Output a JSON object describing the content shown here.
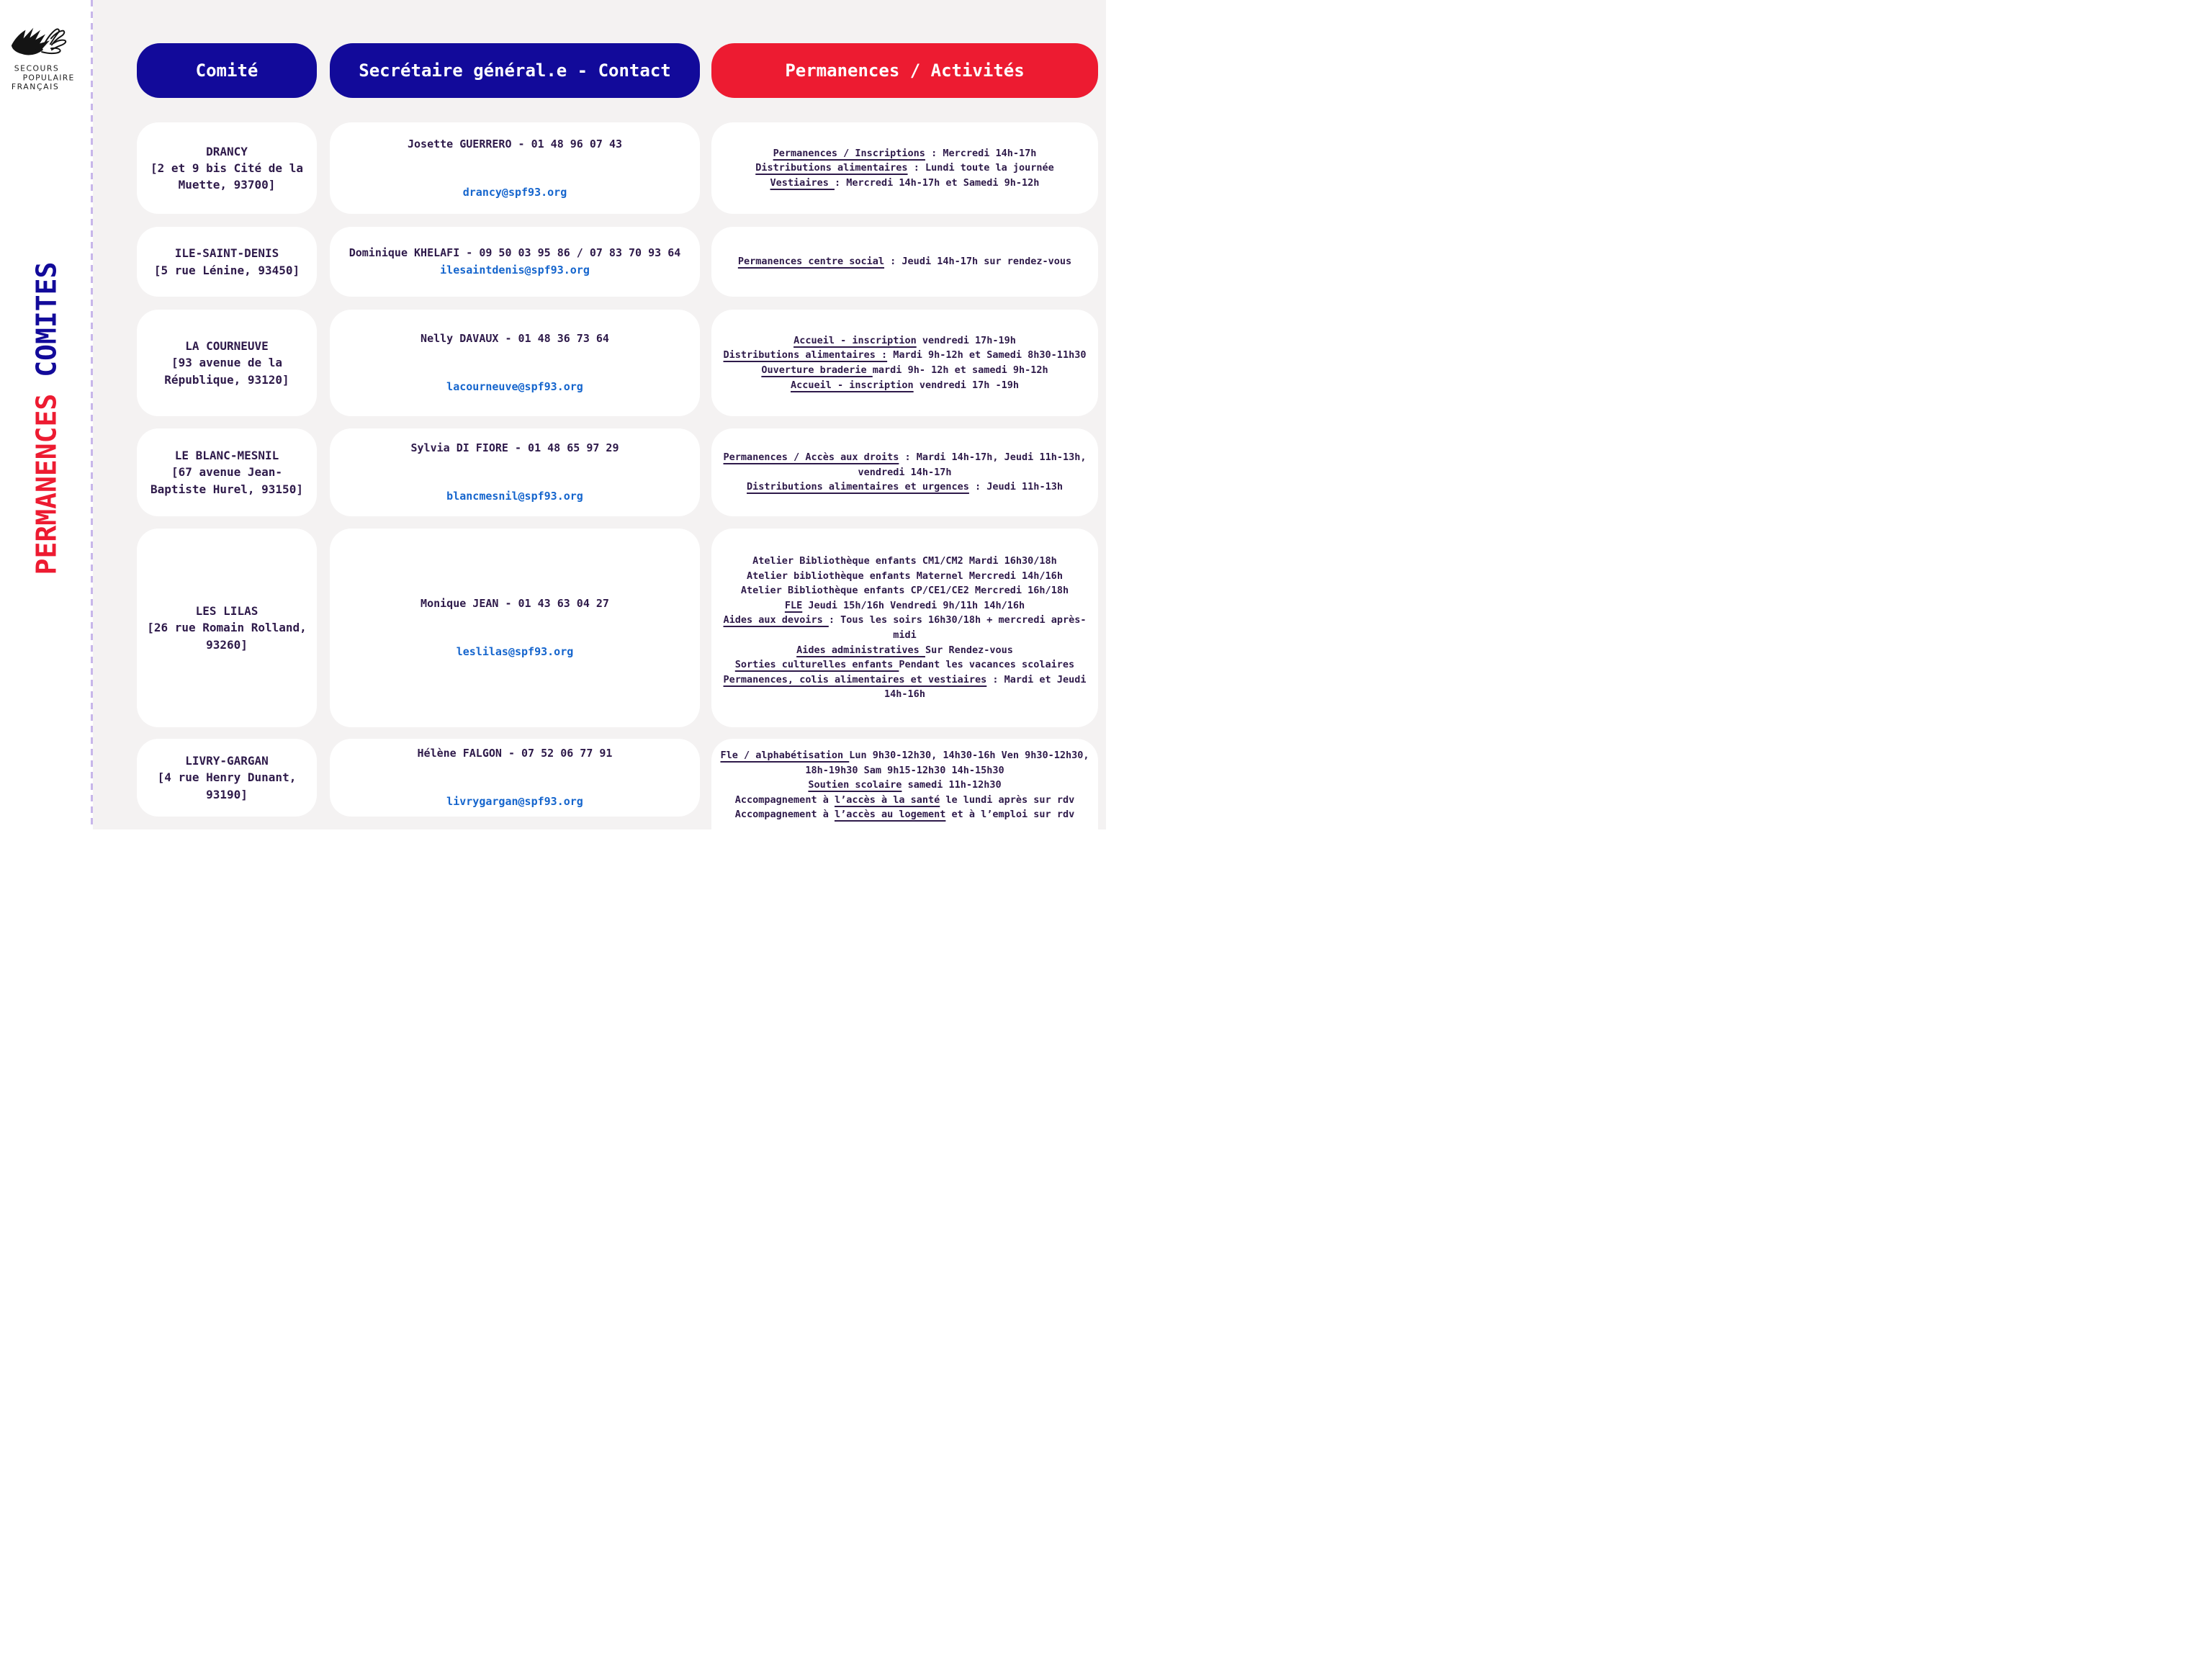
{
  "colors": {
    "header_blue": "#120a9a",
    "header_red": "#ed1b31",
    "body_text": "#2e1a4a",
    "email_blue": "#1565cd",
    "bg_gray": "#f4f2f2",
    "dash_lavender": "#c7b6ea"
  },
  "sidebar": {
    "logo_lines": [
      "SECOURS",
      "POPULAIRE",
      "FRANÇAIS"
    ],
    "vertical_title": {
      "red": "PERMANENCES",
      "blue": "COMITES"
    }
  },
  "headers": {
    "comite": "Comité",
    "contact": "Secrétaire général.e - Contact",
    "activites": "Permanences / Activités"
  },
  "rows": [
    {
      "comite": {
        "name": "DRANCY",
        "address": "[2 et 9 bis Cité de la Muette, 93700]"
      },
      "contact": {
        "name_phone": "Josette GUERRERO - 01 48 96 07 43",
        "email": "drancy@spf93.org"
      },
      "activites": [
        [
          {
            "text": "Permanences / Inscriptions",
            "u": true
          },
          {
            "text": " : Mercredi 14h-17h"
          }
        ],
        [
          {
            "text": "Distributions alimentaires",
            "u": true
          },
          {
            "text": " : Lundi toute la journée"
          }
        ],
        [
          {
            "text": "Vestiaires ",
            "u": true
          },
          {
            "text": ": Mercredi 14h-17h et Samedi 9h-12h"
          }
        ]
      ]
    },
    {
      "comite": {
        "name": "ILE-SAINT-DENIS",
        "address": "[5 rue Lénine, 93450]"
      },
      "contact": {
        "name_phone": "Dominique KHELAFI - 09 50 03 95 86 / 07 83 70 93 64",
        "email": "ilesaintdenis@spf93.org"
      },
      "activites": [
        [
          {
            "text": "Permanences centre social",
            "u": true
          },
          {
            "text": " : Jeudi 14h-17h sur rendez-vous"
          }
        ]
      ]
    },
    {
      "comite": {
        "name": "LA COURNEUVE",
        "address": "[93 avenue de la République, 93120]"
      },
      "contact": {
        "name_phone": "Nelly DAVAUX - 01 48 36 73 64",
        "email": "lacourneuve@spf93.org"
      },
      "activites": [
        [
          {
            "text": "Accueil - inscription",
            "u": true
          },
          {
            "text": " vendredi 17h-19h"
          }
        ],
        [
          {
            "text": "Distributions alimentaires :",
            "u": true
          },
          {
            "text": " Mardi 9h-12h et Samedi 8h30-11h30"
          }
        ],
        [
          {
            "text": "Ouverture braderie ",
            "u": true
          },
          {
            "text": "mardi 9h- 12h et samedi 9h-12h"
          }
        ],
        [
          {
            "text": "Accueil - inscription",
            "u": true
          },
          {
            "text": " vendredi 17h -19h"
          }
        ]
      ]
    },
    {
      "comite": {
        "name": "LE BLANC-MESNIL",
        "address": "[67 avenue Jean-Baptiste Hurel, 93150]"
      },
      "contact": {
        "name_phone": "Sylvia DI FIORE - 01 48 65 97 29",
        "email": "blancmesnil@spf93.org"
      },
      "activites": [
        [
          {
            "text": "Permanences / Accès aux droits",
            "u": true
          },
          {
            "text": " : Mardi 14h-17h, Jeudi 11h-13h, vendredi 14h-17h"
          }
        ],
        [
          {
            "text": "Distributions alimentaires et urgences",
            "u": true
          },
          {
            "text": " : Jeudi 11h-13h"
          }
        ]
      ]
    },
    {
      "comite": {
        "name": "LES LILAS",
        "address": "[26 rue Romain Rolland, 93260]"
      },
      "contact": {
        "name_phone": "Monique JEAN - 01 43 63 04 27",
        "email": "leslilas@spf93.org"
      },
      "activites": [
        [
          {
            "text": "Atelier Bibliothèque enfants CM1/CM2  Mardi 16h30/18h"
          }
        ],
        [
          {
            "text": "Atelier bibliothèque enfants Maternel Mercredi 14h/16h"
          }
        ],
        [
          {
            "text": "Atelier Bibliothèque enfants CP/CE1/CE2 Mercredi 16h/18h"
          }
        ],
        [
          {
            "text": "FLE",
            "u": true
          },
          {
            "text": " Jeudi 15h/16h Vendredi 9h/11h 14h/16h"
          }
        ],
        [
          {
            "text": "Aides aux devoirs ",
            "u": true
          },
          {
            "text": ": Tous les soirs 16h30/18h + mercredi après-midi"
          }
        ],
        [
          {
            "text": "Aides administratives ",
            "u": true
          },
          {
            "text": "   Sur Rendez-vous"
          }
        ],
        [
          {
            "text": "Sorties culturelles enfants ",
            "u": true
          },
          {
            "text": "  Pendant les vacances scolaires"
          }
        ],
        [
          {
            "text": "Permanences, colis alimentaires et vestiaires",
            "u": true
          },
          {
            "text": " : Mardi et Jeudi 14h-16h"
          }
        ]
      ]
    },
    {
      "comite": {
        "name": "LIVRY-GARGAN",
        "address": "[4 rue Henry Dunant, 93190]"
      },
      "contact": {
        "name_phone": "Hélène FALGON - 07 52 06 77 91",
        "email": "livrygargan@spf93.org"
      },
      "activites": [
        [
          {
            "text": "Fle / alphabétisation ",
            "u": true
          },
          {
            "text": " Lun 9h30-12h30, 14h30-16h Ven 9h30-12h30, 18h-19h30 Sam 9h15-12h30 14h-15h30"
          }
        ],
        [
          {
            "text": "Soutien scolaire",
            "u": true
          },
          {
            "text": " samedi 11h-12h30"
          }
        ],
        [
          {
            "text": "Accompagnement à "
          },
          {
            "text": "l’accès à la santé",
            "u": true
          },
          {
            "text": " le lundi après sur rdv"
          }
        ],
        [
          {
            "text": "Accompagnement à "
          },
          {
            "text": "l’accès au logement",
            "u": true
          },
          {
            "text": " et à l’emploi sur rdv"
          }
        ]
      ]
    }
  ]
}
